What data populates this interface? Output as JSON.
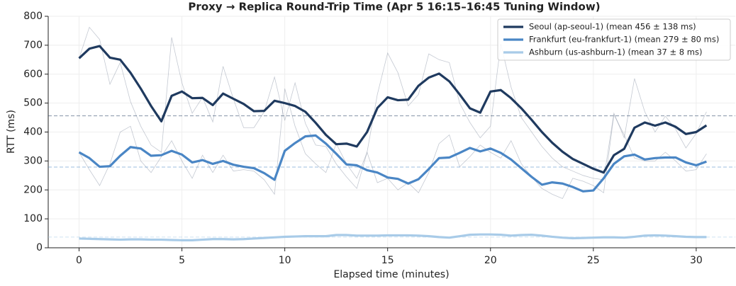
{
  "chart_data": {
    "type": "line",
    "title": "Proxy → Replica Round-Trip Time (Apr 5 16:15–16:45 Tuning Window)",
    "xlabel": "Elapsed time (minutes)",
    "ylabel": "RTT (ms)",
    "x": [
      0,
      0.5,
      1,
      1.5,
      2,
      2.5,
      3,
      3.5,
      4,
      4.5,
      5,
      5.5,
      6,
      6.5,
      7,
      7.5,
      8,
      8.5,
      9,
      9.5,
      10,
      10.5,
      11,
      11.5,
      12,
      12.5,
      13,
      13.5,
      14,
      14.5,
      15,
      15.5,
      16,
      16.5,
      17,
      17.5,
      18,
      18.5,
      19,
      19.5,
      20,
      20.5,
      21,
      21.5,
      22,
      22.5,
      23,
      23.5,
      24,
      24.5,
      25,
      25.5,
      26,
      26.5,
      27,
      27.5,
      28,
      28.5,
      29,
      29.5,
      30,
      30.5
    ],
    "xlim": [
      -1.5,
      31.9
    ],
    "xticks": [
      0,
      5,
      10,
      15,
      20,
      25,
      30
    ],
    "ylim": [
      0,
      800
    ],
    "yticks": [
      0,
      100,
      200,
      300,
      400,
      500,
      600,
      700,
      800
    ],
    "grid": true,
    "legend": "upper right",
    "series": [
      {
        "name": "Seoul (ap-seoul-1)  (mean 456 ± 138 ms)",
        "color": "#1f3a5f",
        "mean": 456,
        "values": [
          655,
          688,
          697,
          657,
          650,
          605,
          550,
          490,
          437,
          525,
          540,
          517,
          518,
          493,
          533,
          515,
          497,
          472,
          473,
          508,
          500,
          490,
          470,
          432,
          390,
          358,
          360,
          350,
          400,
          483,
          520,
          510,
          512,
          560,
          588,
          602,
          575,
          530,
          482,
          467,
          540,
          545,
          517,
          482,
          442,
          400,
          363,
          332,
          307,
          290,
          273,
          260,
          320,
          342,
          415,
          433,
          422,
          433,
          418,
          393,
          400,
          423
        ],
        "raw": [
          655,
          762,
          720,
          565,
          640,
          505,
          420,
          355,
          330,
          727,
          570,
          465,
          520,
          435,
          627,
          515,
          415,
          415,
          470,
          590,
          440,
          570,
          430,
          355,
          350,
          290,
          245,
          205,
          330,
          530,
          673,
          605,
          490,
          530,
          670,
          650,
          640,
          500,
          433,
          380,
          420,
          705,
          555,
          450,
          400,
          350,
          310,
          280,
          265,
          250,
          240,
          235,
          465,
          380,
          585,
          470,
          400,
          455,
          410,
          345,
          395,
          470
        ]
      },
      {
        "name": "Frankfurt (eu-frankfurt-1)  (mean 279 ± 80 ms)",
        "color": "#4a86c5",
        "mean": 279,
        "values": [
          330,
          310,
          280,
          282,
          318,
          348,
          343,
          318,
          320,
          335,
          322,
          295,
          303,
          290,
          300,
          287,
          280,
          275,
          258,
          235,
          335,
          362,
          385,
          388,
          360,
          325,
          288,
          285,
          268,
          260,
          243,
          238,
          222,
          237,
          272,
          310,
          312,
          328,
          345,
          333,
          343,
          328,
          305,
          275,
          245,
          218,
          226,
          222,
          210,
          195,
          198,
          240,
          290,
          316,
          322,
          305,
          310,
          312,
          312,
          295,
          285,
          298
        ],
        "raw": [
          330,
          270,
          215,
          290,
          400,
          420,
          300,
          260,
          315,
          370,
          300,
          240,
          320,
          260,
          320,
          265,
          270,
          265,
          235,
          185,
          550,
          420,
          325,
          290,
          260,
          360,
          290,
          240,
          330,
          225,
          240,
          200,
          225,
          190,
          260,
          360,
          390,
          280,
          315,
          355,
          330,
          310,
          370,
          290,
          245,
          205,
          185,
          170,
          240,
          230,
          215,
          190,
          460,
          390,
          310,
          300,
          300,
          330,
          300,
          265,
          270,
          325
        ]
      },
      {
        "name": "Ashburn (us-ashburn-1)  (mean 37 ± 8 ms)",
        "color": "#a8cbe8",
        "mean": 37,
        "values": [
          32,
          31,
          30,
          29,
          28,
          29,
          29,
          28,
          28,
          27,
          26,
          26,
          28,
          30,
          30,
          29,
          30,
          32,
          34,
          36,
          38,
          39,
          40,
          40,
          40,
          44,
          44,
          42,
          42,
          42,
          43,
          43,
          43,
          42,
          40,
          37,
          35,
          40,
          45,
          46,
          46,
          45,
          42,
          44,
          45,
          42,
          38,
          35,
          33,
          34,
          35,
          36,
          36,
          35,
          38,
          42,
          43,
          42,
          40,
          38,
          37,
          37
        ]
      }
    ]
  }
}
